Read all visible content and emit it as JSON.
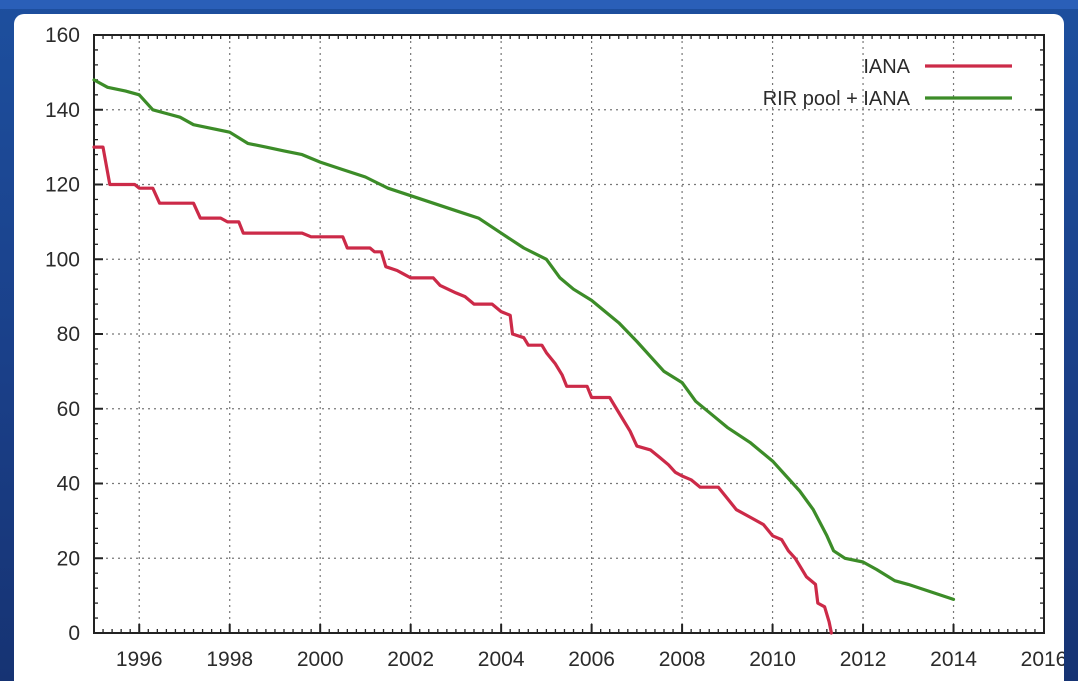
{
  "chart_data": {
    "type": "line",
    "title": "",
    "xlabel": "",
    "ylabel": "",
    "xlim": [
      1995,
      2016
    ],
    "ylim": [
      0,
      160
    ],
    "x_ticks": [
      1996,
      1998,
      2000,
      2002,
      2004,
      2006,
      2008,
      2010,
      2012,
      2014,
      2016
    ],
    "y_ticks": [
      0,
      20,
      40,
      60,
      80,
      100,
      120,
      140,
      160
    ],
    "grid": true,
    "legend_position": "top-right",
    "series": [
      {
        "name": "IANA",
        "color": "#cc2a48",
        "points": [
          [
            1995.0,
            130
          ],
          [
            1995.2,
            130
          ],
          [
            1995.35,
            120
          ],
          [
            1995.9,
            120
          ],
          [
            1996.0,
            119
          ],
          [
            1996.3,
            119
          ],
          [
            1996.45,
            115
          ],
          [
            1997.2,
            115
          ],
          [
            1997.35,
            111
          ],
          [
            1997.8,
            111
          ],
          [
            1997.95,
            110
          ],
          [
            1998.2,
            110
          ],
          [
            1998.3,
            107
          ],
          [
            1999.6,
            107
          ],
          [
            1999.8,
            106
          ],
          [
            2000.5,
            106
          ],
          [
            2000.6,
            103
          ],
          [
            2001.1,
            103
          ],
          [
            2001.2,
            102
          ],
          [
            2001.35,
            102
          ],
          [
            2001.45,
            98
          ],
          [
            2001.7,
            97
          ],
          [
            2001.85,
            96
          ],
          [
            2002.0,
            95
          ],
          [
            2002.5,
            95
          ],
          [
            2002.65,
            93
          ],
          [
            2003.0,
            91
          ],
          [
            2003.2,
            90
          ],
          [
            2003.4,
            88
          ],
          [
            2003.8,
            88
          ],
          [
            2004.0,
            86
          ],
          [
            2004.2,
            85
          ],
          [
            2004.25,
            80
          ],
          [
            2004.5,
            79
          ],
          [
            2004.6,
            77
          ],
          [
            2004.9,
            77
          ],
          [
            2005.0,
            75
          ],
          [
            2005.2,
            72
          ],
          [
            2005.35,
            69
          ],
          [
            2005.45,
            66
          ],
          [
            2005.9,
            66
          ],
          [
            2006.0,
            63
          ],
          [
            2006.4,
            63
          ],
          [
            2006.5,
            61
          ],
          [
            2006.7,
            57
          ],
          [
            2006.85,
            54
          ],
          [
            2007.0,
            50
          ],
          [
            2007.3,
            49
          ],
          [
            2007.5,
            47
          ],
          [
            2007.7,
            45
          ],
          [
            2007.85,
            43
          ],
          [
            2008.0,
            42
          ],
          [
            2008.2,
            41
          ],
          [
            2008.4,
            39
          ],
          [
            2008.8,
            39
          ],
          [
            2009.0,
            36
          ],
          [
            2009.2,
            33
          ],
          [
            2009.5,
            31
          ],
          [
            2009.8,
            29
          ],
          [
            2010.0,
            26
          ],
          [
            2010.2,
            25
          ],
          [
            2010.35,
            22
          ],
          [
            2010.5,
            20
          ],
          [
            2010.6,
            18
          ],
          [
            2010.75,
            15
          ],
          [
            2010.95,
            13
          ],
          [
            2011.0,
            8
          ],
          [
            2011.15,
            7
          ],
          [
            2011.25,
            3
          ],
          [
            2011.3,
            0
          ]
        ]
      },
      {
        "name": "RIR pool + IANA",
        "color": "#3c8c28",
        "points": [
          [
            1995.0,
            148
          ],
          [
            1995.3,
            146
          ],
          [
            1995.7,
            145
          ],
          [
            1996.0,
            144
          ],
          [
            1996.3,
            140
          ],
          [
            1996.6,
            139
          ],
          [
            1996.9,
            138
          ],
          [
            1997.2,
            136
          ],
          [
            1997.6,
            135
          ],
          [
            1998.0,
            134
          ],
          [
            1998.4,
            131
          ],
          [
            1998.8,
            130
          ],
          [
            1999.2,
            129
          ],
          [
            1999.6,
            128
          ],
          [
            2000.0,
            126
          ],
          [
            2000.5,
            124
          ],
          [
            2001.0,
            122
          ],
          [
            2001.5,
            119
          ],
          [
            2002.0,
            117
          ],
          [
            2002.5,
            115
          ],
          [
            2003.0,
            113
          ],
          [
            2003.5,
            111
          ],
          [
            2004.0,
            107
          ],
          [
            2004.5,
            103
          ],
          [
            2005.0,
            100
          ],
          [
            2005.3,
            95
          ],
          [
            2005.6,
            92
          ],
          [
            2006.0,
            89
          ],
          [
            2006.3,
            86
          ],
          [
            2006.6,
            83
          ],
          [
            2007.0,
            78
          ],
          [
            2007.3,
            74
          ],
          [
            2007.6,
            70
          ],
          [
            2008.0,
            67
          ],
          [
            2008.3,
            62
          ],
          [
            2008.7,
            58
          ],
          [
            2009.0,
            55
          ],
          [
            2009.5,
            51
          ],
          [
            2010.0,
            46
          ],
          [
            2010.3,
            42
          ],
          [
            2010.6,
            38
          ],
          [
            2010.9,
            33
          ],
          [
            2011.2,
            26
          ],
          [
            2011.35,
            22
          ],
          [
            2011.6,
            20
          ],
          [
            2012.0,
            19
          ],
          [
            2012.3,
            17
          ],
          [
            2012.7,
            14
          ],
          [
            2013.0,
            13
          ],
          [
            2013.5,
            11
          ],
          [
            2014.0,
            9
          ]
        ]
      }
    ]
  }
}
